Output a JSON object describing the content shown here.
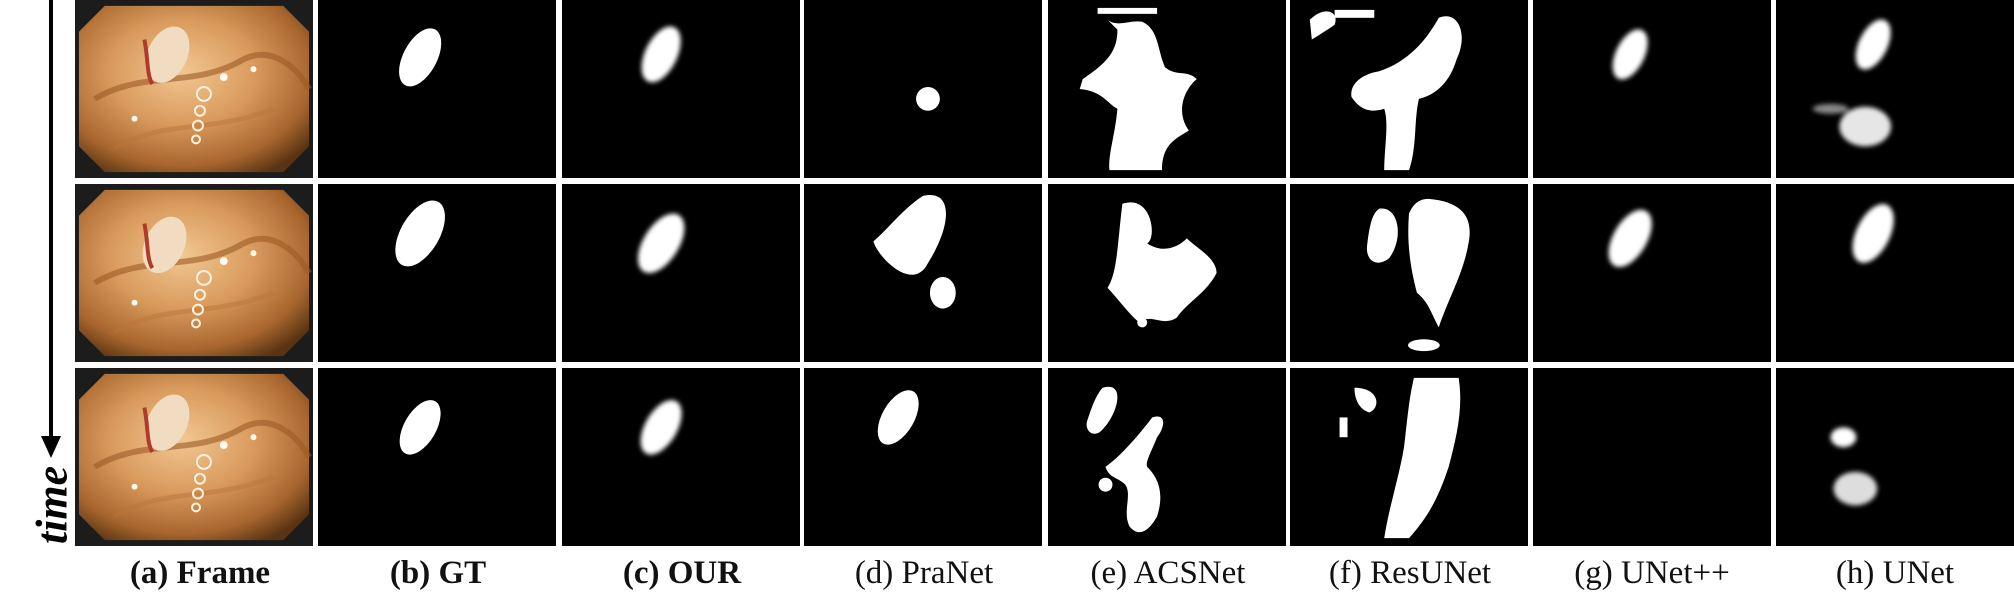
{
  "time_label": "time",
  "columns": [
    {
      "id": "frame",
      "caption": "(a) Frame",
      "bold": true
    },
    {
      "id": "gt",
      "caption": "(b) GT",
      "bold": true
    },
    {
      "id": "our",
      "caption": "(c) OUR",
      "bold": true
    },
    {
      "id": "pranet",
      "caption": "(d) PraNet",
      "bold": false
    },
    {
      "id": "acsnet",
      "caption": "(e) ACSNet",
      "bold": false
    },
    {
      "id": "resunet",
      "caption": "(f) ResUNet",
      "bold": false
    },
    {
      "id": "unetpp",
      "caption": "(g) UNet++",
      "bold": false
    },
    {
      "id": "unet",
      "caption": "(h) UNet",
      "bold": false
    }
  ],
  "rows": 3,
  "colors": {
    "mask_background": "#000000",
    "mask_foreground": "#ffffff",
    "frame_tissue": "#c98a4e"
  }
}
